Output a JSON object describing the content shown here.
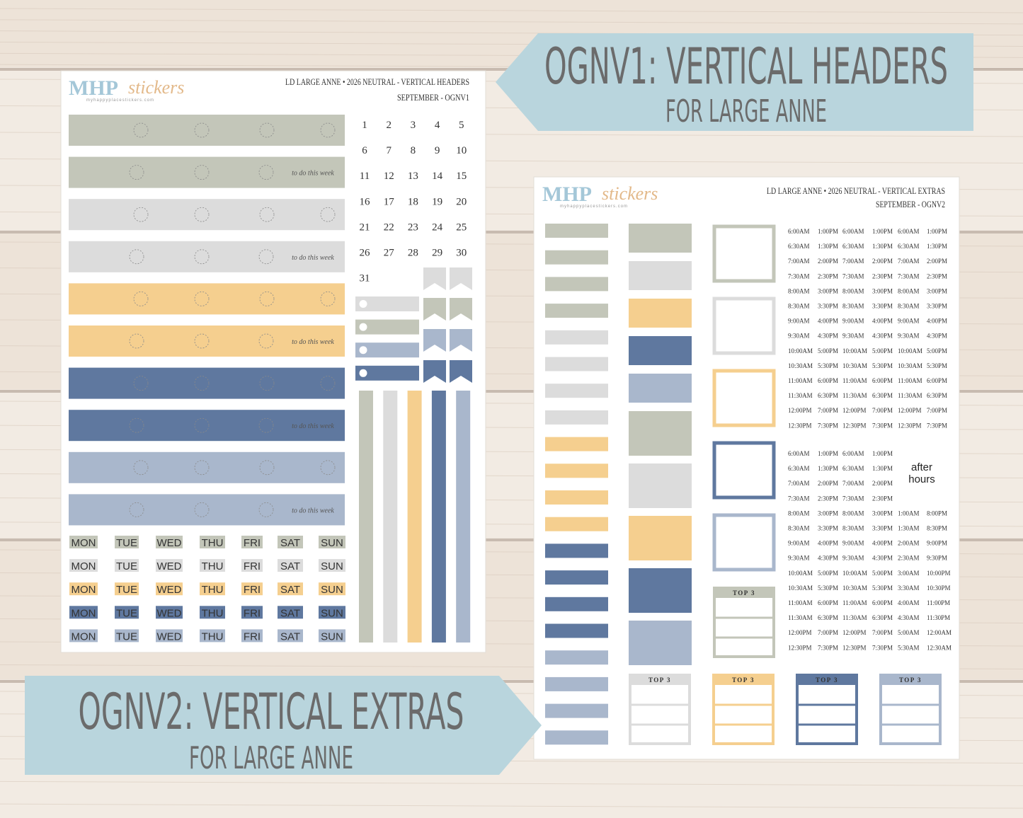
{
  "banner1": {
    "title": "OGNV1: VERTICAL HEADERS",
    "subtitle": "FOR LARGE ANNE"
  },
  "banner2": {
    "title": "OGNV2: VERTICAL EXTRAS",
    "subtitle": "FOR LARGE ANNE"
  },
  "sheet1": {
    "logo": "MHP",
    "logo_script": "stickers",
    "logo_url": "myhappyplacestickers.com",
    "header_line1": "LD LARGE ANNE • 2026 NEUTRAL - VERTICAL HEADERS",
    "header_line2": "SEPTEMBER  - OGNV1",
    "todo": "to do this week",
    "dates": [
      "1",
      "2",
      "3",
      "4",
      "5",
      "6",
      "7",
      "8",
      "9",
      "10",
      "11",
      "12",
      "13",
      "14",
      "15",
      "16",
      "17",
      "18",
      "19",
      "20",
      "21",
      "22",
      "23",
      "24",
      "25",
      "26",
      "27",
      "28",
      "29",
      "30",
      "31"
    ],
    "weekdays": [
      "MON",
      "TUE",
      "WED",
      "THU",
      "FRI",
      "SAT",
      "SUN"
    ]
  },
  "sheet2": {
    "logo": "MHP",
    "logo_script": "stickers",
    "logo_url": "myhappyplacestickers.com",
    "header_line1": "LD LARGE ANNE • 2026 NEUTRAL - VERTICAL EXTRAS",
    "header_line2": "SEPTEMBER - OGNV2",
    "top3": "TOP 3",
    "after_hours": [
      "after",
      "hours"
    ],
    "times_block1": [
      [
        "6:00AM",
        "1:00PM",
        "6:00AM",
        "1:00PM",
        "6:00AM",
        "1:00PM"
      ],
      [
        "6:30AM",
        "1:30PM",
        "6:30AM",
        "1:30PM",
        "6:30AM",
        "1:30PM"
      ],
      [
        "7:00AM",
        "2:00PM",
        "7:00AM",
        "2:00PM",
        "7:00AM",
        "2:00PM"
      ],
      [
        "7:30AM",
        "2:30PM",
        "7:30AM",
        "2:30PM",
        "7:30AM",
        "2:30PM"
      ],
      [
        "8:00AM",
        "3:00PM",
        "8:00AM",
        "3:00PM",
        "8:00AM",
        "3:00PM"
      ],
      [
        "8:30AM",
        "3:30PM",
        "8:30AM",
        "3:30PM",
        "8:30AM",
        "3:30PM"
      ],
      [
        "9:00AM",
        "4:00PM",
        "9:00AM",
        "4:00PM",
        "9:00AM",
        "4:00PM"
      ],
      [
        "9:30AM",
        "4:30PM",
        "9:30AM",
        "4:30PM",
        "9:30AM",
        "4:30PM"
      ],
      [
        "10:00AM",
        "5:00PM",
        "10:00AM",
        "5:00PM",
        "10:00AM",
        "5:00PM"
      ],
      [
        "10:30AM",
        "5:30PM",
        "10:30AM",
        "5:30PM",
        "10:30AM",
        "5:30PM"
      ],
      [
        "11:00AM",
        "6:00PM",
        "11:00AM",
        "6:00PM",
        "11:00AM",
        "6:00PM"
      ],
      [
        "11:30AM",
        "6:30PM",
        "11:30AM",
        "6:30PM",
        "11:30AM",
        "6:30PM"
      ],
      [
        "12:00PM",
        "7:00PM",
        "12:00PM",
        "7:00PM",
        "12:00PM",
        "7:00PM"
      ],
      [
        "12:30PM",
        "7:30PM",
        "12:30PM",
        "7:30PM",
        "12:30PM",
        "7:30PM"
      ]
    ],
    "times_block2": [
      [
        "6:00AM",
        "1:00PM",
        "6:00AM",
        "1:00PM"
      ],
      [
        "6:30AM",
        "1:30PM",
        "6:30AM",
        "1:30PM"
      ],
      [
        "7:00AM",
        "2:00PM",
        "7:00AM",
        "2:00PM"
      ],
      [
        "7:30AM",
        "2:30PM",
        "7:30AM",
        "2:30PM"
      ],
      [
        "8:00AM",
        "3:00PM",
        "8:00AM",
        "3:00PM",
        "1:00AM",
        "8:00PM"
      ],
      [
        "8:30AM",
        "3:30PM",
        "8:30AM",
        "3:30PM",
        "1:30AM",
        "8:30PM"
      ],
      [
        "9:00AM",
        "4:00PM",
        "9:00AM",
        "4:00PM",
        "2:00AM",
        "9:00PM"
      ],
      [
        "9:30AM",
        "4:30PM",
        "9:30AM",
        "4:30PM",
        "2:30AM",
        "9:30PM"
      ],
      [
        "10:00AM",
        "5:00PM",
        "10:00AM",
        "5:00PM",
        "3:00AM",
        "10:00PM"
      ],
      [
        "10:30AM",
        "5:30PM",
        "10:30AM",
        "5:30PM",
        "3:30AM",
        "10:30PM"
      ],
      [
        "11:00AM",
        "6:00PM",
        "11:00AM",
        "6:00PM",
        "4:00AM",
        "11:00PM"
      ],
      [
        "11:30AM",
        "6:30PM",
        "11:30AM",
        "6:30PM",
        "4:30AM",
        "11:30PM"
      ],
      [
        "12:00PM",
        "7:00PM",
        "12:00PM",
        "7:00PM",
        "5:00AM",
        "12:00AM"
      ],
      [
        "12:30PM",
        "7:30PM",
        "12:30PM",
        "7:30PM",
        "5:30AM",
        "12:30AM"
      ]
    ]
  }
}
